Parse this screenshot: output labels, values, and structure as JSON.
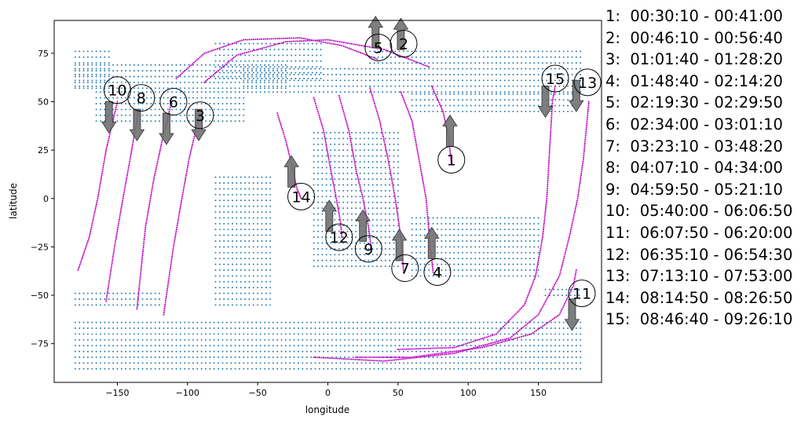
{
  "chart_data": {
    "type": "scatter",
    "xlabel": "longitude",
    "ylabel": "latitude",
    "xlim": [
      -195,
      195
    ],
    "ylim": [
      -95,
      92
    ],
    "xticks": [
      -150,
      -100,
      -50,
      0,
      50,
      100,
      150
    ],
    "yticks": [
      -75,
      -50,
      -25,
      0,
      25,
      50,
      75
    ],
    "grid": false,
    "colors": {
      "land": "#1f77b4",
      "track": "#bf00bf",
      "arrow": "#707070"
    },
    "land_regions": [
      {
        "lon": [
          -180,
          -155
        ],
        "lat": [
          58,
          77
        ]
      },
      {
        "lon": [
          -180,
          -30
        ],
        "lat": [
          57,
          70
        ]
      },
      {
        "lon": [
          -165,
          -60
        ],
        "lat": [
          40,
          56
        ]
      },
      {
        "lon": [
          -60,
          30
        ],
        "lat": [
          55,
          68
        ]
      },
      {
        "lon": [
          30,
          180
        ],
        "lat": [
          55,
          78
        ]
      },
      {
        "lon": [
          60,
          175
        ],
        "lat": [
          45,
          55
        ]
      },
      {
        "lon": [
          -80,
          -5
        ],
        "lat": [
          62,
          82
        ]
      },
      {
        "lon": [
          -80,
          -40
        ],
        "lat": [
          -55,
          12
        ]
      },
      {
        "lon": [
          -10,
          50
        ],
        "lat": [
          -35,
          35
        ]
      },
      {
        "lon": [
          60,
          150
        ],
        "lat": [
          -40,
          -10
        ]
      },
      {
        "lon": [
          -180,
          180
        ],
        "lat": [
          -88,
          -63
        ]
      },
      {
        "lon": [
          -180,
          -120
        ],
        "lat": [
          -55,
          -49
        ]
      },
      {
        "lon": [
          155,
          180
        ],
        "lat": [
          -50,
          -46
        ]
      }
    ],
    "tracks": [
      {
        "label": "1",
        "points": [
          [
            74,
            58
          ],
          [
            82,
            45
          ],
          [
            86,
            32
          ],
          [
            88,
            18
          ]
        ],
        "arrow": "up",
        "arrow_at": [
          87,
          35
        ],
        "label_at": [
          88,
          20
        ]
      },
      {
        "label": "2",
        "points": [
          [
            -88,
            60
          ],
          [
            -65,
            74
          ],
          [
            -30,
            81
          ],
          [
            0,
            82
          ],
          [
            40,
            77
          ],
          [
            72,
            68
          ]
        ],
        "arrow": "up",
        "arrow_at": [
          52,
          85
        ],
        "label_at": [
          54,
          80
        ]
      },
      {
        "label": "3",
        "points": [
          [
            -92,
            42
          ],
          [
            -99,
            20
          ],
          [
            -104,
            0
          ],
          [
            -110,
            -25
          ],
          [
            -117,
            -60
          ]
        ],
        "arrow": "down",
        "arrow_at": [
          -92,
          38
        ],
        "label_at": [
          -91,
          43
        ]
      },
      {
        "label": "4",
        "points": [
          [
            52,
            55
          ],
          [
            60,
            40
          ],
          [
            65,
            20
          ],
          [
            70,
            0
          ],
          [
            73,
            -25
          ],
          [
            75,
            -38
          ]
        ],
        "arrow": "up",
        "arrow_at": [
          74,
          -23
        ],
        "label_at": [
          78,
          -38
        ]
      },
      {
        "label": "5",
        "points": [
          [
            -108,
            62
          ],
          [
            -88,
            75
          ],
          [
            -60,
            82
          ],
          [
            -20,
            83
          ],
          [
            10,
            79
          ],
          [
            35,
            72
          ]
        ],
        "arrow": "up",
        "arrow_at": [
          34,
          86
        ],
        "label_at": [
          36,
          78
        ]
      },
      {
        "label": "6",
        "points": [
          [
            -112,
            48
          ],
          [
            -118,
            30
          ],
          [
            -124,
            10
          ],
          [
            -130,
            -15
          ],
          [
            -136,
            -57
          ]
        ],
        "arrow": "down",
        "arrow_at": [
          -115,
          36
        ],
        "label_at": [
          -110,
          50
        ]
      },
      {
        "label": "7",
        "points": [
          [
            30,
            57
          ],
          [
            37,
            40
          ],
          [
            43,
            20
          ],
          [
            48,
            0
          ],
          [
            52,
            -20
          ],
          [
            54,
            -38
          ]
        ],
        "arrow": "up",
        "arrow_at": [
          51,
          -24
        ],
        "label_at": [
          55,
          -36
        ]
      },
      {
        "label": "8",
        "points": [
          [
            -135,
            45
          ],
          [
            -141,
            20
          ],
          [
            -146,
            0
          ],
          [
            -152,
            -25
          ],
          [
            -158,
            -53
          ]
        ],
        "arrow": "down",
        "arrow_at": [
          -136,
          38
        ],
        "label_at": [
          -133,
          52
        ]
      },
      {
        "label": "9",
        "points": [
          [
            8,
            53
          ],
          [
            15,
            35
          ],
          [
            20,
            15
          ],
          [
            25,
            0
          ],
          [
            29,
            -15
          ],
          [
            31,
            -26
          ]
        ],
        "arrow": "up",
        "arrow_at": [
          25,
          -14
        ],
        "label_at": [
          29,
          -26
        ]
      },
      {
        "label": "10",
        "points": [
          [
            -150,
            50
          ],
          [
            -158,
            25
          ],
          [
            -164,
            0
          ],
          [
            -170,
            -20
          ],
          [
            -178,
            -37
          ]
        ],
        "arrow": "down",
        "arrow_at": [
          -156,
          42
        ],
        "label_at": [
          -150,
          56
        ]
      },
      {
        "label": "11",
        "points": [
          [
            20,
            -82
          ],
          [
            60,
            -82
          ],
          [
            110,
            -77
          ],
          [
            145,
            -70
          ],
          [
            165,
            -60
          ],
          [
            175,
            -45
          ],
          [
            177,
            -37
          ]
        ],
        "arrow": "down",
        "arrow_at": [
          174,
          -60
        ],
        "label_at": [
          181,
          -49
        ]
      },
      {
        "label": "12",
        "points": [
          [
            -10,
            52
          ],
          [
            -3,
            35
          ],
          [
            2,
            15
          ],
          [
            6,
            0
          ],
          [
            9,
            -12
          ],
          [
            10,
            -20
          ]
        ],
        "arrow": "up",
        "arrow_at": [
          1,
          -9
        ],
        "label_at": [
          8,
          -20
        ]
      },
      {
        "label": "13",
        "points": [
          [
            -10,
            -82
          ],
          [
            40,
            -84
          ],
          [
            90,
            -80
          ],
          [
            130,
            -72
          ],
          [
            150,
            -60
          ],
          [
            165,
            -40
          ],
          [
            172,
            -20
          ],
          [
            178,
            0
          ],
          [
            182,
            20
          ],
          [
            186,
            50
          ]
        ],
        "arrow": "down",
        "arrow_at": [
          177,
          53
        ],
        "label_at": [
          185,
          60
        ]
      },
      {
        "label": "14",
        "points": [
          [
            -36,
            44
          ],
          [
            -30,
            30
          ],
          [
            -25,
            15
          ],
          [
            -22,
            5
          ],
          [
            -19,
            0
          ]
        ],
        "arrow": "up",
        "arrow_at": [
          -26,
          14
        ],
        "label_at": [
          -19,
          1
        ]
      },
      {
        "label": "15",
        "points": [
          [
            50,
            -78
          ],
          [
            90,
            -77
          ],
          [
            120,
            -70
          ],
          [
            140,
            -55
          ],
          [
            148,
            -40
          ],
          [
            153,
            -20
          ],
          [
            156,
            0
          ],
          [
            158,
            25
          ],
          [
            160,
            50
          ],
          [
            162,
            58
          ]
        ],
        "arrow": "down",
        "arrow_at": [
          155,
          50
        ],
        "label_at": [
          162,
          62
        ]
      }
    ],
    "legend": [
      "1:  00:30:10 - 00:41:00",
      "2:  00:46:10 - 00:56:40",
      "3:  01:01:40 - 01:28:20",
      "4:  01:48:40 - 02:14:20",
      "5:  02:19:30 - 02:29:50",
      "6:  02:34:00 - 03:01:10",
      "7:  03:23:10 - 03:48:20",
      "8:  04:07:10 - 04:34:00",
      "9:  04:59:50 - 05:21:10",
      "10:  05:40:00 - 06:06:50",
      "11:  06:07:50 - 06:20:00",
      "12:  06:35:10 - 06:54:30",
      "13:  07:13:10 - 07:53:00",
      "14:  08:14:50 - 08:26:50",
      "15:  08:46:40 - 09:26:10"
    ]
  }
}
